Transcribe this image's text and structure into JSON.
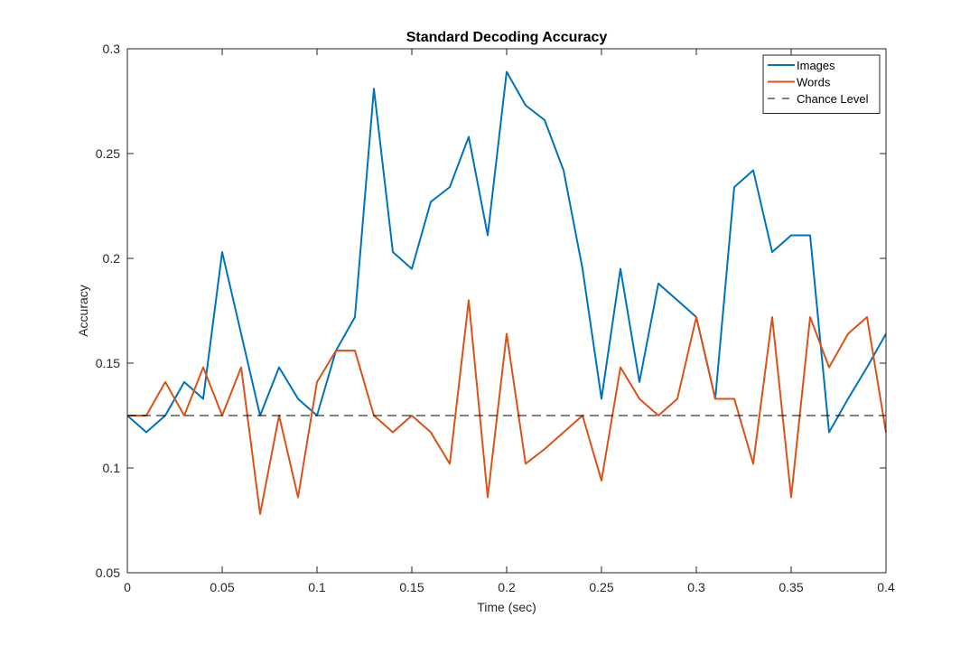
{
  "chart_data": {
    "type": "line",
    "title": "Standard Decoding Accuracy",
    "xlabel": "Time (sec)",
    "ylabel": "Accuracy",
    "xlim": [
      0,
      0.4
    ],
    "ylim": [
      0.05,
      0.3
    ],
    "x_ticks": [
      0,
      0.05,
      0.1,
      0.15,
      0.2,
      0.25,
      0.3,
      0.35,
      0.4
    ],
    "x_tick_labels": [
      "0",
      "0.05",
      "0.1",
      "0.15",
      "0.2",
      "0.25",
      "0.3",
      "0.35",
      "0.4"
    ],
    "y_ticks": [
      0.05,
      0.1,
      0.15,
      0.2,
      0.25,
      0.3
    ],
    "y_tick_labels": [
      "0.05",
      "0.1",
      "0.15",
      "0.2",
      "0.25",
      "0.3"
    ],
    "grid": false,
    "legend_position": "top-right",
    "x": [
      0,
      0.01,
      0.02,
      0.03,
      0.04,
      0.05,
      0.06,
      0.07,
      0.08,
      0.09,
      0.1,
      0.11,
      0.12,
      0.13,
      0.14,
      0.15,
      0.16,
      0.17,
      0.18,
      0.19,
      0.2,
      0.21,
      0.22,
      0.23,
      0.24,
      0.25,
      0.26,
      0.27,
      0.28,
      0.29,
      0.3,
      0.31,
      0.32,
      0.33,
      0.34,
      0.35,
      0.36,
      0.37,
      0.38,
      0.39,
      0.4
    ],
    "series": [
      {
        "name": "Images",
        "color": "#0072BD",
        "style": "solid",
        "values": [
          0.125,
          0.117,
          0.125,
          0.141,
          0.133,
          0.203,
          0.164,
          0.125,
          0.148,
          0.133,
          0.125,
          0.156,
          0.172,
          0.281,
          0.203,
          0.195,
          0.227,
          0.234,
          0.258,
          0.211,
          0.289,
          0.273,
          0.266,
          0.242,
          0.195,
          0.133,
          0.195,
          0.141,
          0.188,
          0.18,
          0.172,
          0.133,
          0.234,
          0.242,
          0.203,
          0.211,
          0.211,
          0.117,
          0.133,
          0.148,
          0.164
        ]
      },
      {
        "name": "Words",
        "color": "#D95319",
        "style": "solid",
        "values": [
          0.125,
          0.125,
          0.141,
          0.125,
          0.148,
          0.125,
          0.148,
          0.078,
          0.125,
          0.086,
          0.141,
          0.156,
          0.156,
          0.125,
          0.117,
          0.125,
          0.117,
          0.102,
          0.18,
          0.086,
          0.164,
          0.102,
          0.109,
          0.117,
          0.125,
          0.094,
          0.148,
          0.133,
          0.125,
          0.133,
          0.172,
          0.133,
          0.133,
          0.102,
          0.172,
          0.086,
          0.172,
          0.148,
          0.164,
          0.172,
          0.117
        ]
      },
      {
        "name": "Chance Level",
        "color": "#000000",
        "style": "dashed",
        "values": [
          0.125,
          0.125,
          0.125,
          0.125,
          0.125,
          0.125,
          0.125,
          0.125,
          0.125,
          0.125,
          0.125,
          0.125,
          0.125,
          0.125,
          0.125,
          0.125,
          0.125,
          0.125,
          0.125,
          0.125,
          0.125,
          0.125,
          0.125,
          0.125,
          0.125,
          0.125,
          0.125,
          0.125,
          0.125,
          0.125,
          0.125,
          0.125,
          0.125,
          0.125,
          0.125,
          0.125,
          0.125,
          0.125,
          0.125,
          0.125,
          0.125
        ]
      }
    ]
  }
}
